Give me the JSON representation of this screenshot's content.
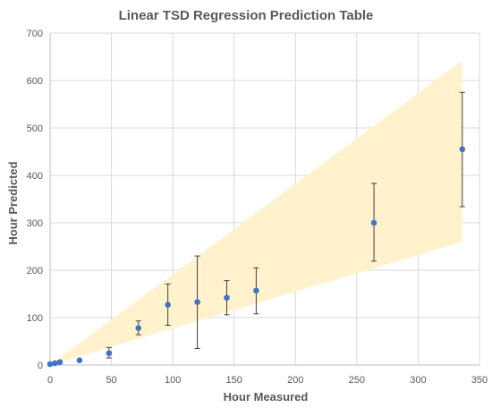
{
  "chart_data": {
    "type": "scatter",
    "title": "Linear TSD Regression Prediction Table",
    "xlabel": "Hour Measured",
    "ylabel": "Hour Predicted",
    "xlim": [
      0,
      350
    ],
    "ylim": [
      0,
      700
    ],
    "x_ticks": [
      0,
      50,
      100,
      150,
      200,
      250,
      300,
      350
    ],
    "y_ticks": [
      0,
      100,
      200,
      300,
      400,
      500,
      600,
      700
    ],
    "grid": true,
    "colors": {
      "points": "#4472c4",
      "band": "#fff2cc",
      "error_bars": "#404040"
    },
    "points": [
      {
        "x": 0,
        "y": 2,
        "err_low": 2,
        "err_high": 2
      },
      {
        "x": 4,
        "y": 4,
        "err_low": 4,
        "err_high": 4
      },
      {
        "x": 8,
        "y": 6,
        "err_low": 6,
        "err_high": 6
      },
      {
        "x": 24,
        "y": 10,
        "err_low": 10,
        "err_high": 10
      },
      {
        "x": 48,
        "y": 25,
        "err_low": 15,
        "err_high": 37
      },
      {
        "x": 72,
        "y": 78,
        "err_low": 64,
        "err_high": 93
      },
      {
        "x": 96,
        "y": 127,
        "err_low": 84,
        "err_high": 171
      },
      {
        "x": 120,
        "y": 133,
        "err_low": 35,
        "err_high": 230
      },
      {
        "x": 144,
        "y": 142,
        "err_low": 106,
        "err_high": 178
      },
      {
        "x": 168,
        "y": 157,
        "err_low": 108,
        "err_high": 205
      },
      {
        "x": 264,
        "y": 300,
        "err_low": 219,
        "err_high": 383
      },
      {
        "x": 336,
        "y": 455,
        "err_low": 334,
        "err_high": 575
      }
    ],
    "band": {
      "lower": [
        [
          0,
          0
        ],
        [
          336,
          260
        ]
      ],
      "upper": [
        [
          0,
          0
        ],
        [
          336,
          642
        ]
      ]
    }
  }
}
